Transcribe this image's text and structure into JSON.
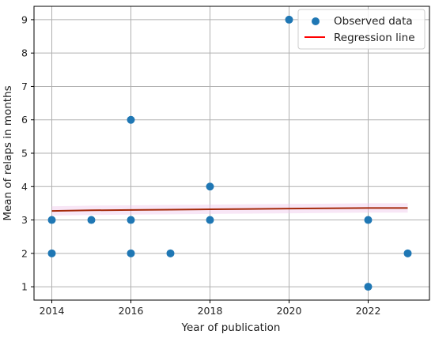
{
  "chart_data": {
    "type": "scatter",
    "xlabel": "Year of publication",
    "ylabel": "Mean of relaps in months",
    "xlim": [
      2013.55,
      23.55
    ],
    "ylim": [
      0.6,
      9.4
    ],
    "xticks": [
      2014,
      2016,
      2018,
      2020,
      2022
    ],
    "yticks": [
      1,
      2,
      3,
      4,
      5,
      6,
      7,
      8,
      9
    ],
    "grid": true,
    "legend_position": "top-right",
    "series": [
      {
        "name": "Observed data",
        "kind": "scatter",
        "color": "#1f77b4",
        "points": [
          [
            2014,
            3
          ],
          [
            2014,
            2
          ],
          [
            2015,
            3
          ],
          [
            2016,
            6
          ],
          [
            2016,
            3
          ],
          [
            2016,
            2
          ],
          [
            2017,
            2
          ],
          [
            2018,
            4
          ],
          [
            2018,
            3
          ],
          [
            2020,
            9
          ],
          [
            2022,
            3
          ],
          [
            2022,
            1
          ],
          [
            2023,
            2
          ]
        ]
      },
      {
        "name": "Regression line",
        "kind": "line",
        "color": "#ff0000",
        "points": [
          [
            2014,
            3.27
          ],
          [
            2015,
            3.29
          ],
          [
            2016,
            3.3
          ],
          [
            2017,
            3.31
          ],
          [
            2018,
            3.32
          ],
          [
            2019,
            3.33
          ],
          [
            2020,
            3.34
          ],
          [
            2021,
            3.35
          ],
          [
            2022,
            3.36
          ],
          [
            2023,
            3.36
          ]
        ]
      }
    ]
  }
}
